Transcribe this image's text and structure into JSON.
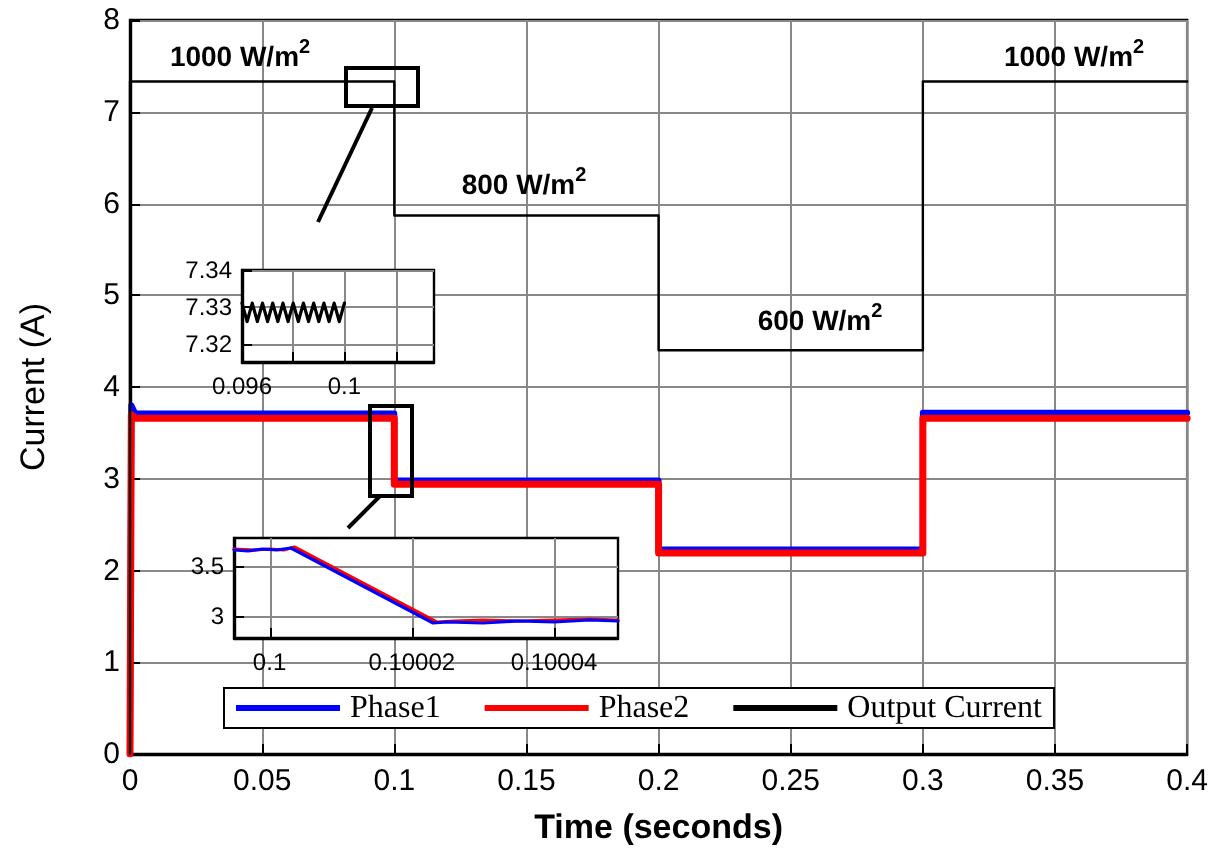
{
  "chart_data": [
    {
      "type": "line",
      "xlabel": "Time (seconds)",
      "ylabel": "Current (A)",
      "xlim": [
        0,
        0.4
      ],
      "ylim": [
        0,
        8
      ],
      "xticks": [
        0,
        0.05,
        0.1,
        0.15,
        0.2,
        0.25,
        0.3,
        0.35,
        0.4
      ],
      "yticks": [
        0,
        1,
        2,
        3,
        4,
        5,
        6,
        7,
        8
      ],
      "grid": true,
      "legend": "bottom",
      "marker": "none",
      "line_style": "solid",
      "annotations": [
        "1000 W/m$^{2}$",
        "800 W/m$^{2}$",
        "600 W/m$^{2}$",
        "1000 W/m$^{2}$"
      ],
      "series": [
        {
          "name": "Phase1",
          "color": "#0000ff",
          "x": [
            0,
            0.0005,
            0.002,
            0.1,
            0.1,
            0.2,
            0.2,
            0.3,
            0.3,
            0.4
          ],
          "values": [
            0,
            3.8,
            3.71,
            3.71,
            2.98,
            2.98,
            2.23,
            2.23,
            3.72,
            3.72
          ]
        },
        {
          "name": "Phase2",
          "color": "#ff0000",
          "x": [
            0,
            0.0005,
            0.002,
            0.1,
            0.1,
            0.2,
            0.2,
            0.3,
            0.3,
            0.4
          ],
          "values": [
            0,
            3.7,
            3.66,
            3.66,
            2.94,
            2.94,
            2.19,
            2.19,
            3.66,
            3.66
          ]
        },
        {
          "name": "Output Current",
          "color": "#000000",
          "x": [
            0,
            0,
            0.1,
            0.1,
            0.2,
            0.2,
            0.3,
            0.3,
            0.4
          ],
          "values": [
            0,
            7.33,
            7.33,
            5.87,
            5.87,
            4.4,
            4.4,
            7.33,
            7.33
          ]
        }
      ]
    },
    {
      "type": "line",
      "xlim": [
        0.096,
        0.1035
      ],
      "ylim": [
        7.315,
        7.34
      ],
      "xticks": [
        0.096,
        {
          "value": 0.098,
          "label": null
        },
        0.1,
        {
          "value": 0.102,
          "label": null
        }
      ],
      "yticks": [
        7.32,
        7.33,
        7.34
      ],
      "grid": true,
      "marker": "none",
      "line_style": "solid",
      "series": [
        {
          "color": "#000000",
          "x": [
            0.096,
            0.0962,
            0.0964,
            0.0966,
            0.0968,
            0.097,
            0.0972,
            0.0974,
            0.0976,
            0.0978,
            0.098,
            0.0982,
            0.0984,
            0.0986,
            0.0988,
            0.099,
            0.0992,
            0.0994,
            0.0996,
            0.0998,
            0.1
          ],
          "values": [
            7.331,
            7.326,
            7.331,
            7.326,
            7.331,
            7.326,
            7.331,
            7.326,
            7.331,
            7.326,
            7.331,
            7.326,
            7.331,
            7.326,
            7.331,
            7.326,
            7.331,
            7.326,
            7.331,
            7.326,
            7.331
          ]
        }
      ]
    },
    {
      "type": "line",
      "xlim": [
        0.099995,
        0.100049
      ],
      "ylim": [
        2.78,
        3.78
      ],
      "xticks": [
        0.1,
        0.10002,
        0.10004
      ],
      "yticks": [
        3,
        3.5
      ],
      "grid": true,
      "marker": "none",
      "line_style": "solid",
      "series": [
        {
          "color": "#ff0000",
          "x": [
            0.099995,
            0.099998,
            0.1,
            0.100002,
            0.1000035,
            0.1000235,
            0.100026,
            0.10003,
            0.100035,
            0.10004,
            0.100045,
            0.100049
          ],
          "values": [
            3.67,
            3.66,
            3.67,
            3.66,
            3.69,
            2.94,
            2.95,
            2.96,
            2.95,
            2.96,
            2.97,
            2.96
          ]
        },
        {
          "color": "#0000ff",
          "x": [
            0.099995,
            0.099997,
            0.099999,
            0.100001,
            0.100003,
            0.100023,
            0.100025,
            0.10003,
            0.100035,
            0.10004,
            0.100045,
            0.100049
          ],
          "values": [
            3.66,
            3.65,
            3.67,
            3.66,
            3.68,
            2.93,
            2.94,
            2.93,
            2.95,
            2.94,
            2.96,
            2.95
          ]
        }
      ]
    }
  ]
}
